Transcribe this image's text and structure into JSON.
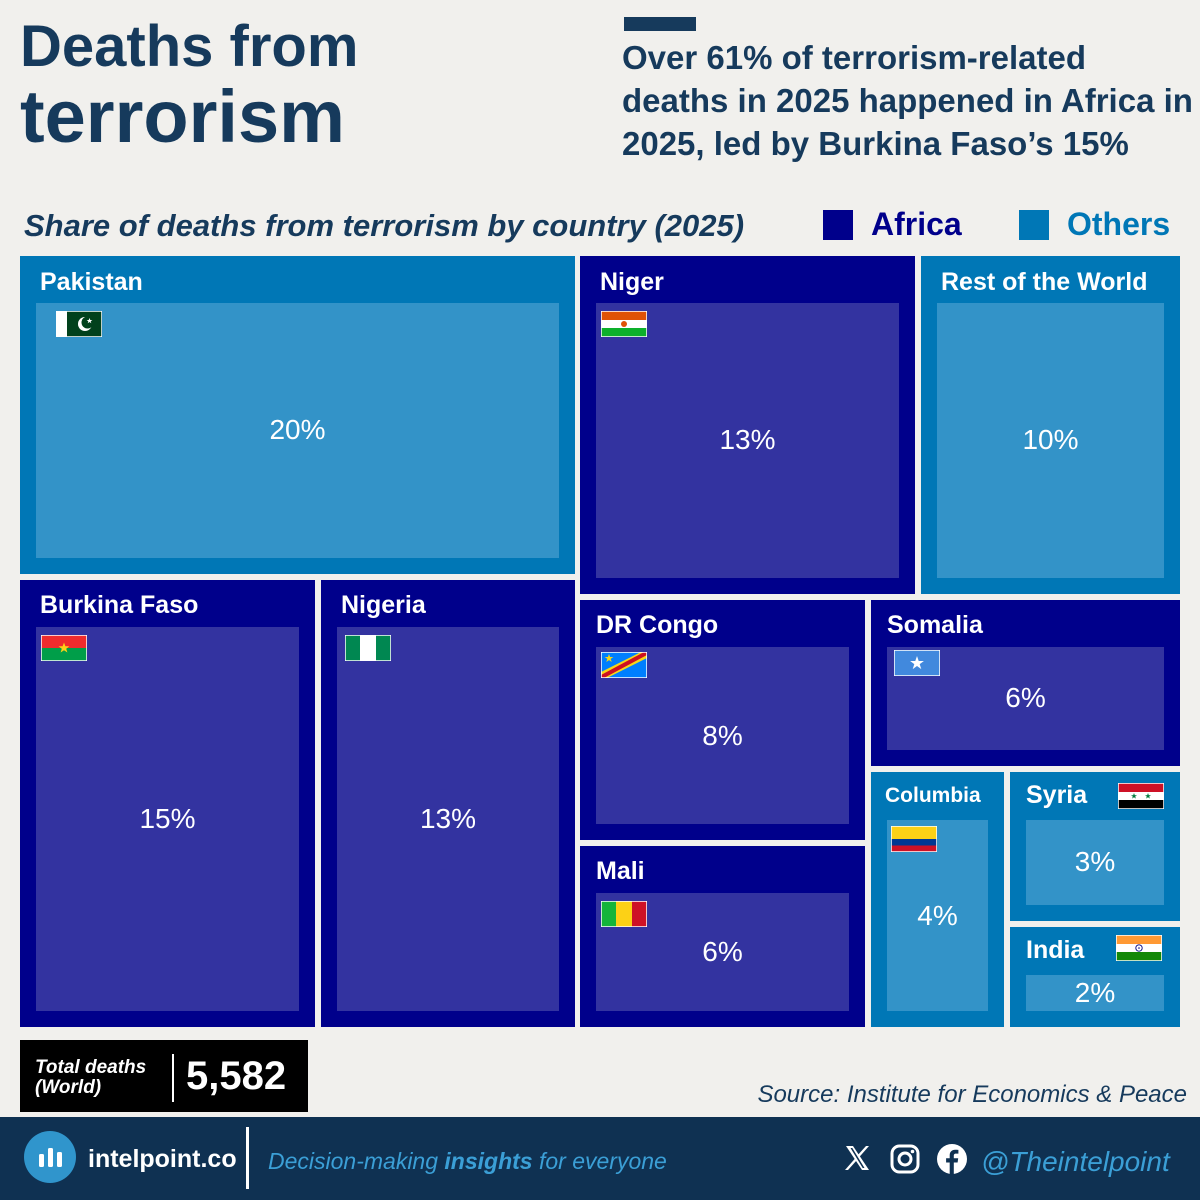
{
  "title": {
    "line1": "Deaths from",
    "line2": "terrorism"
  },
  "headline": "Over 61% of terrorism-related deaths in 2025 happened in Africa in 2025, led by Burkina Faso’s 15%",
  "colors": {
    "africa": "#00008b",
    "africa_inner": "#3333a0",
    "others": "#0077b6",
    "others_inner": "#3393c8",
    "text_dark": "#163a5c"
  },
  "chart_data": {
    "type": "treemap",
    "title": "Share of deaths from terrorism by country (2025)",
    "unit": "%",
    "legend": [
      {
        "label": "Africa",
        "group": "africa",
        "color": "#00008b"
      },
      {
        "label": "Others",
        "group": "others",
        "color": "#0077b6"
      }
    ],
    "items": [
      {
        "name": "Pakistan",
        "value": 20,
        "label": "20%",
        "group": "others",
        "flag": "pakistan"
      },
      {
        "name": "Niger",
        "value": 13,
        "label": "13%",
        "group": "africa",
        "flag": "niger"
      },
      {
        "name": "Rest of the World",
        "value": 10,
        "label": "10%",
        "group": "others",
        "flag": ""
      },
      {
        "name": "Burkina Faso",
        "value": 15,
        "label": "15%",
        "group": "africa",
        "flag": "burkina-faso"
      },
      {
        "name": "Nigeria",
        "value": 13,
        "label": "13%",
        "group": "africa",
        "flag": "nigeria"
      },
      {
        "name": "DR Congo",
        "value": 8,
        "label": "8%",
        "group": "africa",
        "flag": "dr-congo"
      },
      {
        "name": "Somalia",
        "value": 6,
        "label": "6%",
        "group": "africa",
        "flag": "somalia"
      },
      {
        "name": "Mali",
        "value": 6,
        "label": "6%",
        "group": "africa",
        "flag": "mali"
      },
      {
        "name": "Columbia",
        "value": 4,
        "label": "4%",
        "group": "others",
        "flag": "colombia"
      },
      {
        "name": "Syria",
        "value": 3,
        "label": "3%",
        "group": "others",
        "flag": "syria"
      },
      {
        "name": "India",
        "value": 2,
        "label": "2%",
        "group": "others",
        "flag": "india"
      }
    ]
  },
  "total": {
    "label_line1": "Total deaths",
    "label_line2": "(World)",
    "value": "5,582"
  },
  "source": "Source: Institute for Economics & Peace",
  "footer": {
    "brand": "intelpoint.co",
    "tagline_pre": "Decision-making ",
    "tagline_bold": "insights",
    "tagline_post": " for everyone",
    "handle": "@Theintelpoint",
    "social_icons": [
      "x-icon",
      "instagram-icon",
      "facebook-icon"
    ]
  }
}
